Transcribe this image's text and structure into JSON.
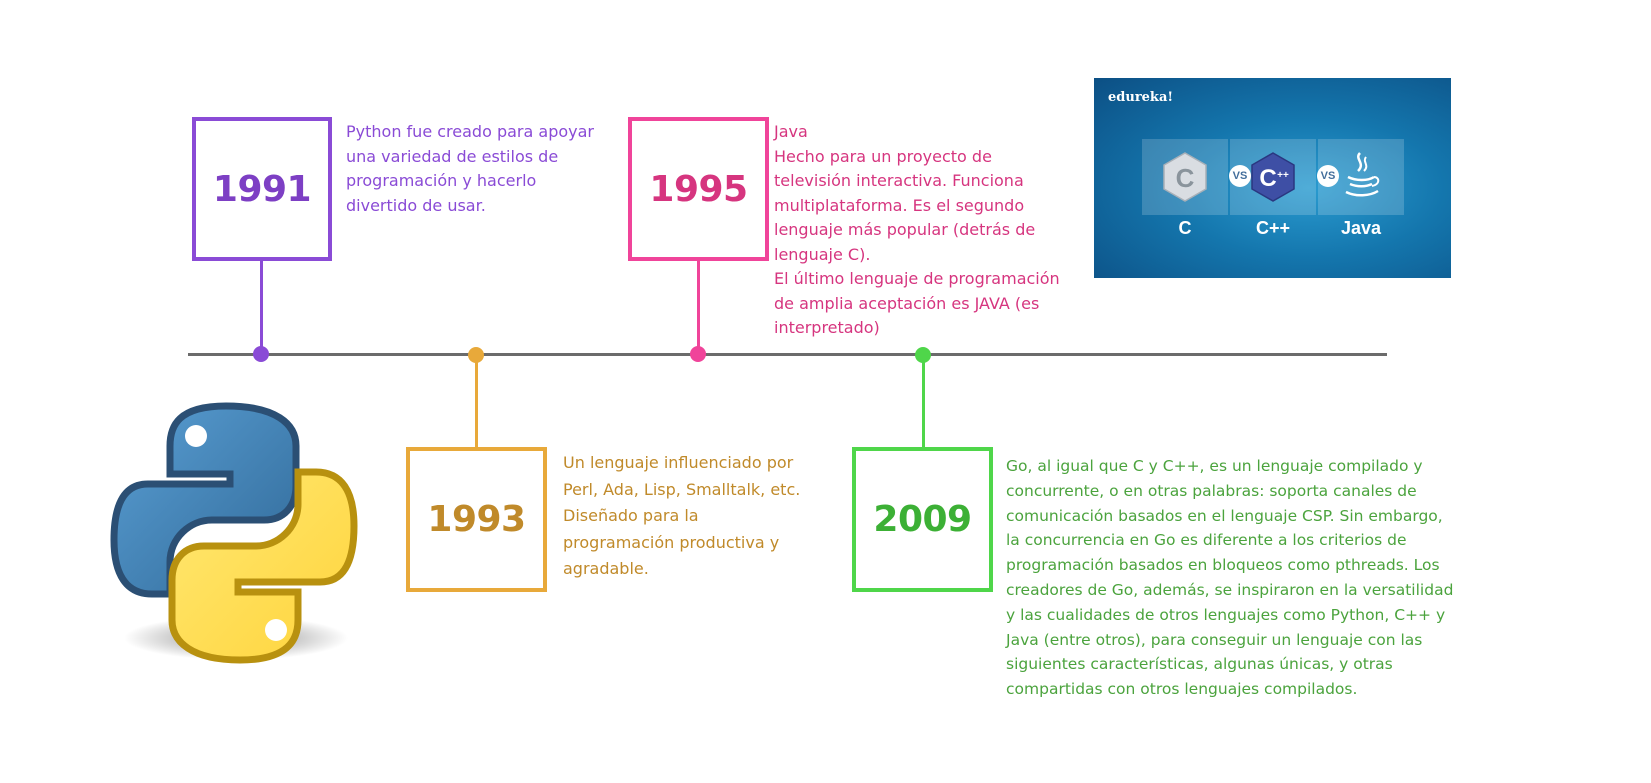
{
  "colors": {
    "purple": "#8a4bd6",
    "orange": "#e8a93a",
    "orange_text": "#c08a2a",
    "pink": "#f0449a",
    "pink_text": "#d6357f",
    "green": "#4fd64a",
    "green_text": "#4ba33d",
    "line": "#6b6b6b"
  },
  "events": [
    {
      "year": "1991",
      "text": "Python fue creado para apoyar\nuna variedad de estilos de\nprogramación y hacerlo\ndivertido de usar."
    },
    {
      "year": "1993",
      "text": "Un lenguaje influenciado por\nPerl, Ada, Lisp, Smalltalk, etc.\nDiseñado para la\nprogramación productiva y\nagradable."
    },
    {
      "year": "1995",
      "text": "Java\nHecho para un proyecto de\ntelevisión interactiva. Funciona\nmultiplataforma. Es el segundo\nlenguaje más popular (detrás de\nlenguaje C).\nEl último lenguaje de programación\nde amplia aceptación es JAVA (es\ninterpretado)"
    },
    {
      "year": "2009",
      "text": "Go, al igual que C y C++, es un lenguaje compilado y\nconcurrente, o en otras palabras: soporta canales de\ncomunicación basados en el lenguaje CSP. Sin embargo,\nla concurrencia en Go es diferente a los criterios de\nprogramación basados en bloqueos como pthreads. Los\ncreadores de Go, además, se inspiraron en la versatilidad\ny las cualidades de otros lenguajes como Python, C++ y\nJava (entre otros), para conseguir un lenguaje con las\nsiguientes características, algunas únicas, y otras\ncompartidas con otros lenguajes compilados."
    }
  ],
  "banner": {
    "brand": "edureka!",
    "labels": [
      "C",
      "C++",
      "Java"
    ],
    "vs_label": "VS",
    "icons": [
      "c-language-icon",
      "cpp-language-icon",
      "java-coffee-icon"
    ]
  },
  "logo": {
    "icon": "python-logo-icon"
  }
}
